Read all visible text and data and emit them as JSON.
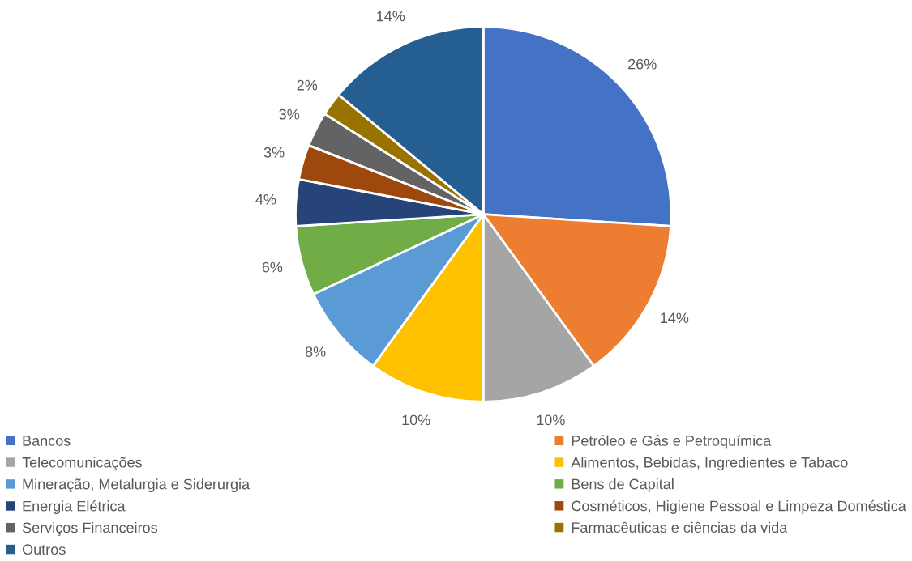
{
  "chart_data": {
    "type": "pie",
    "categories": [
      "Bancos",
      "Petróleo e Gás e Petroquímica",
      "Telecomunicações",
      "Alimentos, Bebidas, Ingredientes e Tabaco",
      "Mineração, Metalurgia e Siderurgia",
      "Bens de Capital",
      "Energia Elétrica",
      "Cosméticos, Higiene Pessoal e Limpeza Doméstica",
      "Serviços Financeiros",
      "Farmacêuticas e ciências da vida",
      "Outros"
    ],
    "values": [
      26,
      14,
      10,
      10,
      8,
      6,
      4,
      3,
      3,
      2,
      14
    ],
    "value_labels": [
      "26%",
      "14%",
      "10%",
      "10%",
      "8%",
      "6%",
      "4%",
      "3%",
      "3%",
      "2%",
      "14%"
    ],
    "colors": [
      "#4472c4",
      "#ed7d31",
      "#a5a5a5",
      "#ffc000",
      "#5b9bd5",
      "#70ad47",
      "#264478",
      "#9e480e",
      "#636363",
      "#997300",
      "#255e91"
    ],
    "legend": "bottom"
  }
}
